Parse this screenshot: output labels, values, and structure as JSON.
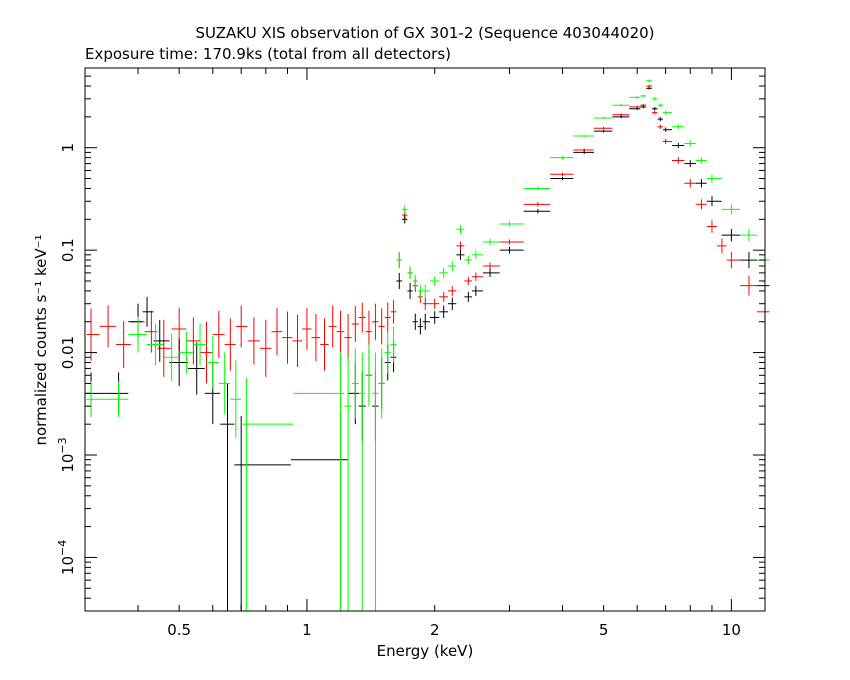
{
  "chart_data": {
    "type": "scatter",
    "title": "SUZAKU XIS observation of GX 301-2 (Sequence 403044020)",
    "subtitle": "Exposure time: 170.9ks (total from all detectors)",
    "xlabel": "Energy (keV)",
    "ylabel": "normalized counts s⁻¹ keV⁻¹",
    "xscale": "log",
    "yscale": "log",
    "xlim": [
      0.3,
      12
    ],
    "ylim": [
      3e-05,
      6
    ],
    "x_ticks": [
      {
        "value": 0.5,
        "label": "0.5"
      },
      {
        "value": 1,
        "label": "1"
      },
      {
        "value": 2,
        "label": "2"
      },
      {
        "value": 5,
        "label": "5"
      },
      {
        "value": 10,
        "label": "10"
      }
    ],
    "y_ticks": [
      {
        "value": 1,
        "label": "1",
        "exp": ""
      },
      {
        "value": 0.1,
        "label": "0.1",
        "exp": ""
      },
      {
        "value": 0.01,
        "label": "0.01",
        "exp": ""
      },
      {
        "value": 0.001,
        "label": "10",
        "exp": "−3"
      },
      {
        "value": 0.0001,
        "label": "10",
        "exp": "−4"
      }
    ],
    "grid": false,
    "series": [
      {
        "color": "#ff0000",
        "x": [
          0.31,
          0.34,
          0.37,
          0.4,
          0.43,
          0.46,
          0.5,
          0.54,
          0.58,
          0.62,
          0.66,
          0.7,
          0.75,
          0.8,
          0.85,
          0.9,
          0.95,
          1.0,
          1.05,
          1.1,
          1.15,
          1.2,
          1.25,
          1.3,
          1.35,
          1.4,
          1.45,
          1.5,
          1.55,
          1.6,
          1.65,
          1.7,
          1.75,
          1.8,
          1.85,
          1.9,
          2.0,
          2.1,
          2.2,
          2.3,
          2.4,
          2.5,
          2.7,
          3.0,
          3.5,
          4.0,
          4.5,
          5.0,
          5.5,
          6.0,
          6.2,
          6.4,
          6.6,
          6.8,
          7.0,
          7.5,
          8.0,
          8.5,
          9.0,
          9.5,
          10.0,
          11.0,
          12.0
        ],
        "y": [
          0.015,
          0.018,
          0.012,
          0.02,
          0.016,
          0.011,
          0.017,
          0.013,
          0.01,
          0.015,
          0.012,
          0.018,
          0.013,
          0.011,
          0.016,
          0.014,
          0.013,
          0.017,
          0.014,
          0.012,
          0.018,
          0.016,
          0.014,
          0.019,
          0.022,
          0.016,
          0.02,
          0.018,
          0.022,
          0.025,
          0.08,
          0.22,
          0.06,
          0.045,
          0.035,
          0.03,
          0.03,
          0.035,
          0.04,
          0.11,
          0.05,
          0.055,
          0.07,
          0.12,
          0.28,
          0.55,
          0.95,
          1.55,
          2.1,
          2.5,
          2.6,
          4.0,
          2.2,
          1.6,
          1.15,
          0.75,
          0.45,
          0.28,
          0.17,
          0.11,
          0.08,
          0.045,
          0.025
        ],
        "yerr_rel": [
          1.8,
          1.6,
          1.7,
          1.5,
          1.6,
          1.9,
          1.6,
          1.7,
          2.0,
          1.7,
          1.8,
          1.6,
          1.7,
          1.9,
          1.7,
          1.8,
          1.8,
          1.6,
          1.7,
          1.8,
          1.6,
          1.6,
          1.7,
          1.5,
          1.4,
          1.6,
          1.5,
          1.5,
          1.4,
          1.3,
          1.2,
          1.1,
          1.15,
          1.15,
          1.15,
          1.15,
          1.12,
          1.12,
          1.12,
          1.1,
          1.1,
          1.1,
          1.08,
          1.06,
          1.05,
          1.04,
          1.04,
          1.03,
          1.03,
          1.03,
          1.03,
          1.03,
          1.04,
          1.05,
          1.06,
          1.08,
          1.1,
          1.12,
          1.15,
          1.18,
          1.2,
          1.25,
          1.3
        ]
      },
      {
        "color": "#000000",
        "x": [
          0.31,
          0.36,
          0.4,
          0.42,
          0.45,
          0.5,
          0.55,
          0.6,
          0.65,
          0.7,
          1.2,
          1.3,
          1.35,
          1.4,
          1.45,
          1.5,
          1.55,
          1.6,
          1.65,
          1.7,
          1.75,
          1.8,
          1.85,
          1.9,
          2.0,
          2.1,
          2.2,
          2.3,
          2.4,
          2.5,
          2.7,
          3.0,
          3.5,
          4.0,
          4.5,
          5.0,
          5.5,
          6.0,
          6.2,
          6.4,
          6.6,
          6.8,
          7.0,
          7.5,
          8.0,
          8.5,
          9.0,
          10.0,
          11.0,
          12.0
        ],
        "y": [
          0.004,
          0.004,
          0.02,
          0.025,
          0.013,
          0.008,
          0.007,
          0.004,
          0.002,
          0.0008,
          0.0009,
          0.004,
          0.003,
          0.006,
          0.003,
          0.005,
          0.008,
          0.009,
          0.05,
          0.2,
          0.04,
          0.02,
          0.018,
          0.02,
          0.022,
          0.025,
          0.03,
          0.09,
          0.035,
          0.04,
          0.06,
          0.1,
          0.24,
          0.5,
          0.9,
          1.45,
          2.0,
          2.4,
          2.5,
          3.8,
          2.4,
          1.9,
          1.5,
          1.05,
          0.7,
          0.45,
          0.3,
          0.14,
          0.08,
          0.045
        ],
        "yerr_rel": [
          1.6,
          1.6,
          1.5,
          1.4,
          1.6,
          1.7,
          1.8,
          2.0,
          2.5,
          3.0,
          3.0,
          2.0,
          2.2,
          1.8,
          2.2,
          1.8,
          1.5,
          1.4,
          1.2,
          1.1,
          1.2,
          1.2,
          1.2,
          1.2,
          1.15,
          1.15,
          1.15,
          1.12,
          1.12,
          1.12,
          1.1,
          1.08,
          1.05,
          1.04,
          1.04,
          1.03,
          1.03,
          1.03,
          1.03,
          1.03,
          1.04,
          1.05,
          1.05,
          1.06,
          1.08,
          1.1,
          1.12,
          1.15,
          1.2,
          1.25
        ]
      },
      {
        "color": "#00ff00",
        "x": [
          0.31,
          0.36,
          0.4,
          0.44,
          0.48,
          0.52,
          0.56,
          0.6,
          0.64,
          0.68,
          0.72,
          1.2,
          1.25,
          1.3,
          1.35,
          1.4,
          1.45,
          1.5,
          1.55,
          1.6,
          1.65,
          1.7,
          1.75,
          1.8,
          1.85,
          1.9,
          2.0,
          2.1,
          2.2,
          2.3,
          2.4,
          2.5,
          2.7,
          3.0,
          3.5,
          4.0,
          4.5,
          5.0,
          5.5,
          6.0,
          6.2,
          6.4,
          6.6,
          6.8,
          7.0,
          7.5,
          8.0,
          8.5,
          9.0,
          10.0,
          11.0,
          12.0
        ],
        "y": [
          0.0035,
          0.0035,
          0.015,
          0.012,
          0.009,
          0.01,
          0.012,
          0.008,
          0.005,
          0.0035,
          0.002,
          0.004,
          0.003,
          0.005,
          0.004,
          0.006,
          0.004,
          0.005,
          0.01,
          0.012,
          0.08,
          0.25,
          0.06,
          0.05,
          0.04,
          0.04,
          0.05,
          0.06,
          0.07,
          0.16,
          0.08,
          0.09,
          0.12,
          0.18,
          0.4,
          0.8,
          1.3,
          1.95,
          2.6,
          3.1,
          3.2,
          4.5,
          3.0,
          2.6,
          2.2,
          1.6,
          1.1,
          0.75,
          0.5,
          0.25,
          0.14,
          0.08
        ],
        "yerr_rel": [
          1.5,
          1.5,
          1.5,
          1.6,
          1.7,
          1.6,
          1.6,
          1.8,
          2.0,
          2.4,
          2.8,
          2.5,
          3.0,
          2.2,
          2.5,
          2.0,
          2.5,
          2.2,
          1.6,
          1.5,
          1.2,
          1.1,
          1.15,
          1.15,
          1.15,
          1.15,
          1.12,
          1.12,
          1.12,
          1.1,
          1.1,
          1.1,
          1.08,
          1.06,
          1.05,
          1.04,
          1.03,
          1.03,
          1.03,
          1.03,
          1.03,
          1.03,
          1.04,
          1.04,
          1.05,
          1.06,
          1.07,
          1.08,
          1.1,
          1.12,
          1.15,
          1.2
        ]
      }
    ]
  }
}
